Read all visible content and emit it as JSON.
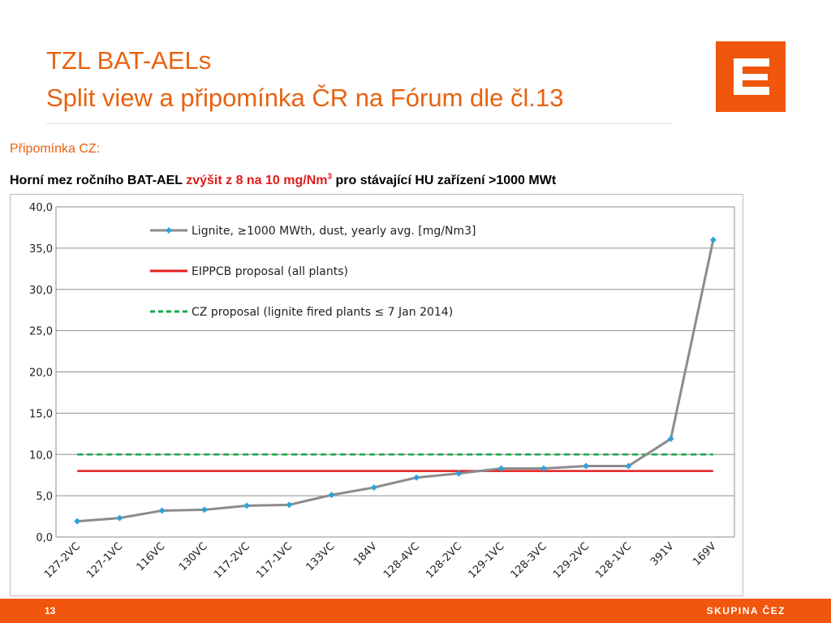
{
  "slide": {
    "title_line1": "TZL BAT-AELs",
    "title_line2": "Split view a připomínka ČR na Fórum dle čl.13",
    "comment_label": "Připomínka CZ:",
    "headline": {
      "part1": "Horní mez ročního BAT-AEL ",
      "part2_red": "zvýšit z 8 na 10 mg/Nm",
      "sup": "3",
      "part3": " pro stávající HU zařízení >1000 MWt"
    },
    "page_number": "13",
    "brand": "SKUPINA ČEZ"
  },
  "colors": {
    "accent": "#e8620f",
    "footer": "#f0560c",
    "series_lignite": "#8c8c8c",
    "marker_lignite": "#2ea3dc",
    "eippcb": "#e31e1e",
    "cz": "#15a84a"
  },
  "chart_data": {
    "type": "line",
    "categories": [
      "127-2VC",
      "127-1VC",
      "116VC",
      "130VC",
      "117-2VC",
      "117-1VC",
      "133VC",
      "184V",
      "128-4VC",
      "128-2VC",
      "129-1VC",
      "128-3VC",
      "129-2VC",
      "128-1VC",
      "391V",
      "169V"
    ],
    "ylim": [
      0,
      40
    ],
    "yticks": [
      "0,0",
      "5,0",
      "10,0",
      "15,0",
      "20,0",
      "25,0",
      "30,0",
      "35,0",
      "40,0"
    ],
    "grid": true,
    "legend_position": "top-left inside plot",
    "series": [
      {
        "name": "Lignite, ≥1000 MWth, dust, yearly avg. [mg/Nm3]",
        "values": [
          1.9,
          2.3,
          3.2,
          3.3,
          3.8,
          3.9,
          5.1,
          6.0,
          7.2,
          7.7,
          8.3,
          8.3,
          8.6,
          8.6,
          11.9,
          36.0
        ],
        "style": "grey line with blue diamond markers"
      },
      {
        "name": "EIPPCB proposal (all plants)",
        "constant": 8,
        "style": "solid red"
      },
      {
        "name": "CZ proposal (lignite fired plants ≤ 7 Jan 2014)",
        "constant": 10,
        "style": "dashed green"
      }
    ]
  }
}
